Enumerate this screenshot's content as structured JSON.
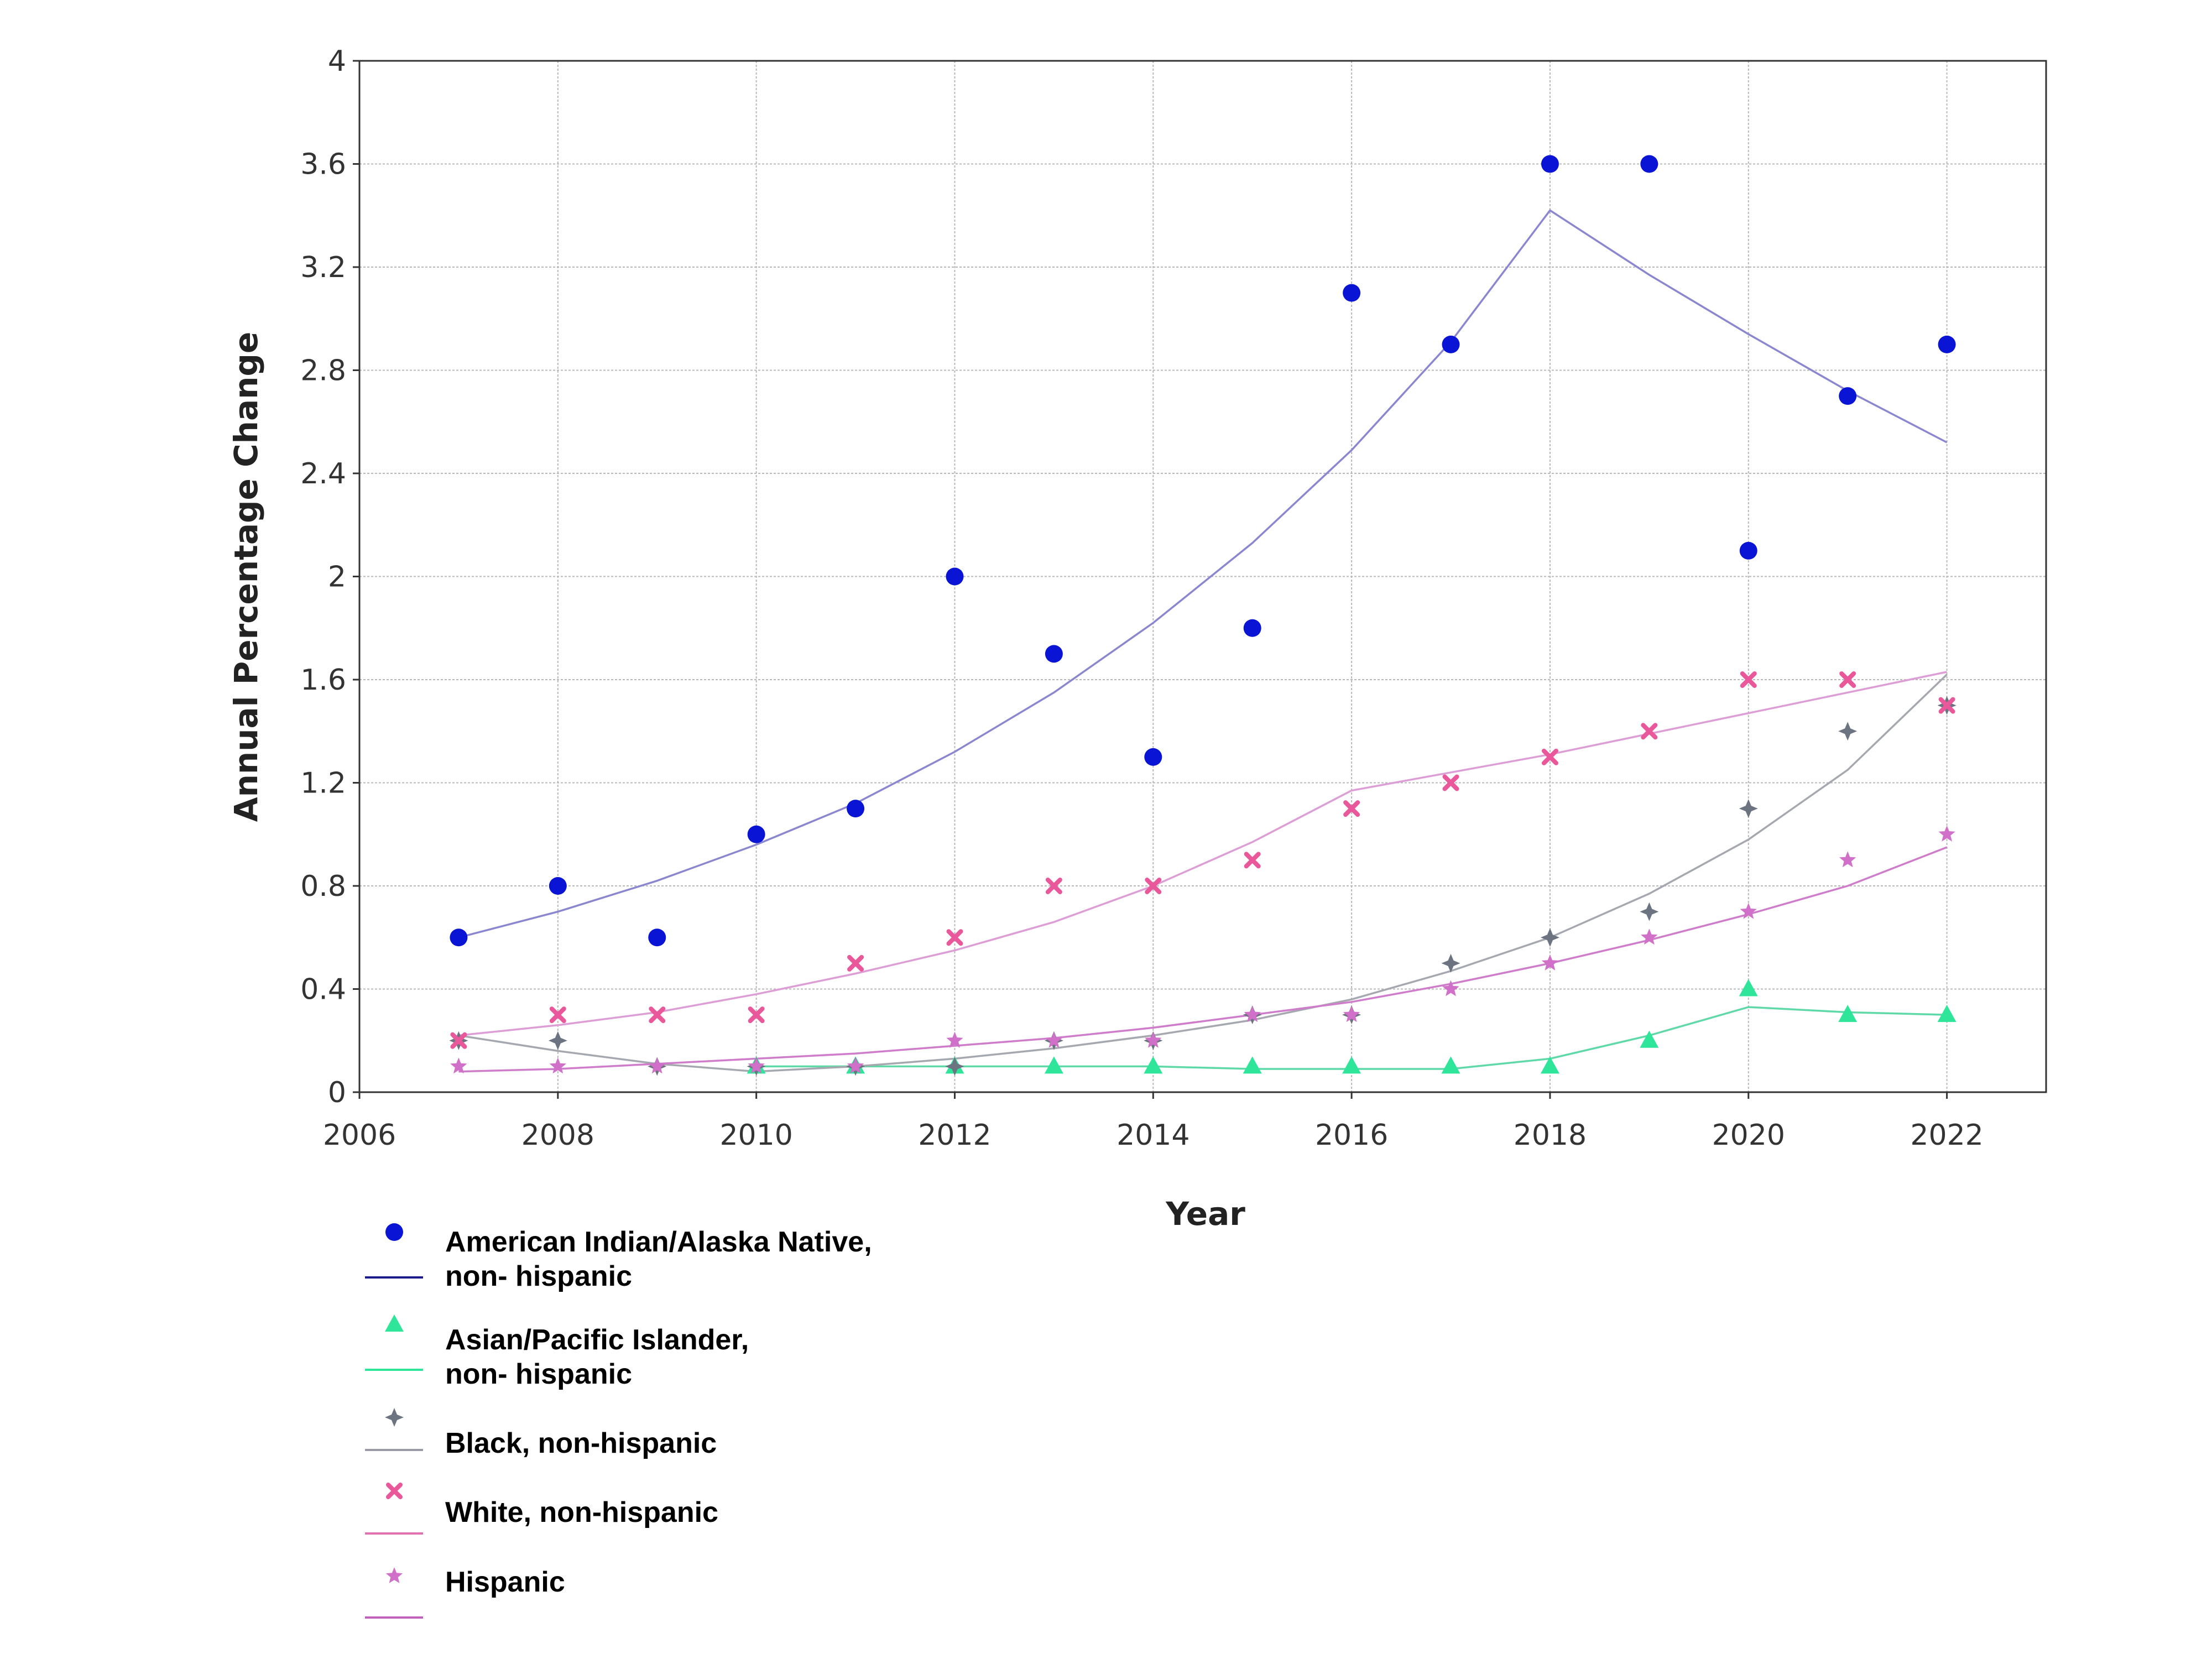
{
  "chart_data": {
    "type": "scatter",
    "xlabel": "Year",
    "ylabel": "Annual Percentage Change",
    "xlim": [
      2006,
      2023
    ],
    "ylim": [
      0,
      4
    ],
    "x_ticks": [
      2006,
      2008,
      2010,
      2012,
      2014,
      2016,
      2018,
      2020,
      2022
    ],
    "y_ticks": [
      0,
      0.4,
      0.8,
      1.2,
      1.6,
      2,
      2.4,
      2.8,
      3.2,
      3.6,
      4
    ],
    "grid": true,
    "legend_position": "bottom-left",
    "x": [
      2007,
      2008,
      2009,
      2010,
      2011,
      2012,
      2013,
      2014,
      2015,
      2016,
      2017,
      2018,
      2019,
      2020,
      2021,
      2022
    ],
    "series": [
      {
        "legend_lines": [
          "American Indian/Alaska Native,",
          "non- hispanic"
        ],
        "marker": "circle",
        "marker_color": "#0a14d4",
        "line_color": "#8a86cf",
        "legend_line_color": "#1a1a8a",
        "values": [
          0.6,
          0.8,
          0.6,
          1.0,
          1.1,
          2.0,
          1.7,
          1.3,
          1.8,
          3.1,
          2.9,
          3.6,
          3.6,
          2.1,
          2.7,
          2.9
        ],
        "fit": [
          0.6,
          0.7,
          0.82,
          0.96,
          1.12,
          1.32,
          1.55,
          1.82,
          2.13,
          2.49,
          2.91,
          3.42,
          3.17,
          2.94,
          2.72,
          2.52
        ]
      },
      {
        "legend_lines": [
          "Asian/Pacific Islander,",
          "non- hispanic"
        ],
        "marker": "triangle",
        "marker_color": "#2ee59a",
        "line_color": "#5fd9a8",
        "legend_line_color": "#2ee59a",
        "values": [
          null,
          null,
          null,
          0.1,
          0.1,
          0.1,
          0.1,
          0.1,
          0.1,
          0.1,
          0.1,
          0.1,
          0.2,
          0.4,
          0.3,
          0.3
        ],
        "fit": [
          null,
          null,
          null,
          0.1,
          0.1,
          0.1,
          0.1,
          0.1,
          0.09,
          0.09,
          0.09,
          0.13,
          0.22,
          0.33,
          0.31,
          0.3
        ]
      },
      {
        "legend_lines": [
          "Black, non-hispanic"
        ],
        "marker": "diamond",
        "marker_color": "#6b7480",
        "line_color": "#a6a8b0",
        "legend_line_color": "#9a9aa6",
        "values": [
          0.2,
          0.2,
          0.1,
          0.1,
          0.1,
          0.1,
          0.2,
          0.2,
          0.3,
          0.3,
          0.5,
          0.6,
          0.7,
          1.1,
          1.4,
          1.5
        ],
        "fit": [
          0.22,
          0.16,
          0.11,
          0.08,
          0.1,
          0.13,
          0.17,
          0.22,
          0.28,
          0.36,
          0.47,
          0.6,
          0.77,
          0.98,
          1.25,
          1.62
        ]
      },
      {
        "legend_lines": [
          "White, non-hispanic"
        ],
        "marker": "x",
        "marker_color": "#e8589a",
        "line_color": "#dd9ed6",
        "legend_line_color": "#e070b0",
        "values": [
          0.2,
          0.3,
          0.3,
          0.3,
          0.5,
          0.6,
          0.8,
          0.8,
          0.9,
          1.1,
          1.2,
          1.3,
          1.4,
          1.6,
          1.6,
          1.5
        ],
        "fit": [
          0.22,
          0.26,
          0.31,
          0.38,
          0.46,
          0.55,
          0.66,
          0.8,
          0.97,
          1.17,
          1.24,
          1.31,
          1.39,
          1.47,
          1.55,
          1.63
        ]
      },
      {
        "legend_lines": [
          "Hispanic"
        ],
        "marker": "star",
        "marker_color": "#d070c8",
        "line_color": "#cf7ccb",
        "legend_line_color": "#c060b8",
        "values": [
          0.1,
          0.1,
          0.1,
          0.1,
          0.1,
          0.2,
          0.2,
          0.2,
          0.3,
          0.3,
          0.4,
          0.5,
          0.6,
          0.7,
          0.9,
          1.0
        ],
        "fit": [
          0.08,
          0.09,
          0.11,
          0.13,
          0.15,
          0.18,
          0.21,
          0.25,
          0.3,
          0.35,
          0.42,
          0.5,
          0.59,
          0.69,
          0.8,
          0.95
        ]
      }
    ]
  }
}
